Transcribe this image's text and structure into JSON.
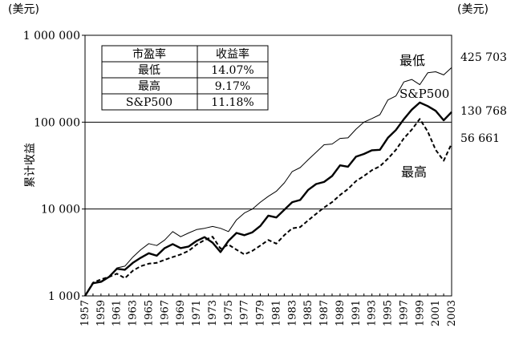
{
  "chart_data": {
    "type": "line",
    "y_scale": "log",
    "ylim": [
      1000,
      1000000
    ],
    "xlim": [
      1957,
      2003
    ],
    "unit_left": "(美元)",
    "unit_right": "(美元)",
    "ylabel": "累计收益",
    "y_ticks": [
      {
        "value": 1000,
        "label": "1 000"
      },
      {
        "value": 10000,
        "label": "10 000"
      },
      {
        "value": 100000,
        "label": "100 000"
      },
      {
        "value": 1000000,
        "label": "1 000 000"
      }
    ],
    "x_tick_labels": [
      "1957",
      "1959",
      "1961",
      "1963",
      "1965",
      "1967",
      "1969",
      "1971",
      "1973",
      "1975",
      "1977",
      "1979",
      "1981",
      "1983",
      "1985",
      "1987",
      "1989",
      "1991",
      "1993",
      "1995",
      "1997",
      "1999",
      "2001",
      "2003"
    ],
    "grid": "horizontal",
    "series": [
      {
        "name": "最低",
        "style": "thin",
        "end_label": "425 703",
        "x": [
          1957,
          1958,
          1959,
          1960,
          1961,
          1962,
          1963,
          1964,
          1965,
          1966,
          1967,
          1968,
          1969,
          1970,
          1971,
          1972,
          1973,
          1974,
          1975,
          1976,
          1977,
          1978,
          1979,
          1980,
          1981,
          1982,
          1983,
          1984,
          1985,
          1986,
          1987,
          1988,
          1989,
          1990,
          1991,
          1992,
          1993,
          1994,
          1995,
          1996,
          1997,
          1998,
          1999,
          2000,
          2001,
          2002,
          2003
        ],
        "y": [
          1000,
          1380,
          1480,
          1650,
          2100,
          2200,
          2800,
          3400,
          4000,
          3800,
          4400,
          5500,
          4800,
          5300,
          5800,
          6000,
          6300,
          6000,
          5500,
          7500,
          9000,
          10000,
          12000,
          14000,
          16000,
          20000,
          27000,
          30000,
          37000,
          45000,
          55000,
          56000,
          65000,
          66000,
          83000,
          100000,
          110000,
          122000,
          180000,
          200000,
          290000,
          310000,
          270000,
          370000,
          380000,
          350000,
          425703
        ]
      },
      {
        "name": "S&P500",
        "style": "thick",
        "end_label": "130 768",
        "x": [
          1957,
          1958,
          1959,
          1960,
          1961,
          1962,
          1963,
          1964,
          1965,
          1966,
          1967,
          1968,
          1969,
          1970,
          1971,
          1972,
          1973,
          1974,
          1975,
          1976,
          1977,
          1978,
          1979,
          1980,
          1981,
          1982,
          1983,
          1984,
          1985,
          1986,
          1987,
          1988,
          1989,
          1990,
          1991,
          1992,
          1993,
          1994,
          1995,
          1996,
          1997,
          1998,
          1999,
          2000,
          2001,
          2002,
          2003
        ],
        "y": [
          1000,
          1400,
          1450,
          1650,
          2050,
          2000,
          2400,
          2750,
          3100,
          2900,
          3550,
          3950,
          3550,
          3700,
          4300,
          4750,
          4100,
          3200,
          4300,
          5300,
          5000,
          5400,
          6400,
          8400,
          8000,
          9800,
          12000,
          12700,
          16600,
          19400,
          20500,
          24000,
          31800,
          30700,
          40000,
          43000,
          47500,
          48100,
          66000,
          81000,
          108000,
          139000,
          168000,
          153000,
          135000,
          105000,
          130768
        ]
      },
      {
        "name": "最高",
        "style": "dashed",
        "end_label": "56 661",
        "x": [
          1957,
          1958,
          1959,
          1960,
          1961,
          1962,
          1963,
          1964,
          1965,
          1966,
          1967,
          1968,
          1969,
          1970,
          1971,
          1972,
          1973,
          1974,
          1975,
          1976,
          1977,
          1978,
          1979,
          1980,
          1981,
          1982,
          1983,
          1984,
          1985,
          1986,
          1987,
          1988,
          1989,
          1990,
          1991,
          1992,
          1993,
          1994,
          1995,
          1996,
          1997,
          1998,
          1999,
          2000,
          2001,
          2002,
          2003
        ],
        "y": [
          1000,
          1420,
          1550,
          1650,
          1800,
          1600,
          1950,
          2200,
          2350,
          2400,
          2600,
          2800,
          3000,
          3300,
          3900,
          4400,
          4800,
          3500,
          3900,
          3400,
          3000,
          3300,
          3800,
          4400,
          4000,
          5000,
          6000,
          6200,
          7400,
          8800,
          10400,
          12000,
          14500,
          17000,
          21000,
          24000,
          28000,
          31000,
          38000,
          48000,
          65000,
          82000,
          109000,
          78000,
          48000,
          36000,
          56661
        ]
      }
    ],
    "table": {
      "headers": [
        "市盈率",
        "收益率"
      ],
      "rows": [
        [
          "最低",
          "14.07%"
        ],
        [
          "最高",
          "9.17%"
        ],
        [
          "S&P500",
          "11.18%"
        ]
      ]
    }
  }
}
